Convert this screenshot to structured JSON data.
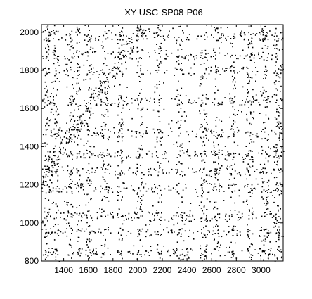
{
  "chart_data": {
    "type": "scatter",
    "title": "XY-USC-SP08-P06",
    "xlabel": "",
    "ylabel": "",
    "xlim": [
      1220,
      3180
    ],
    "ylim": [
      800,
      2040
    ],
    "x_ticks": [
      1400,
      1600,
      1800,
      2000,
      2200,
      2400,
      2600,
      2800,
      3000
    ],
    "y_ticks": [
      800,
      1000,
      1200,
      1400,
      1600,
      1800,
      2000
    ],
    "grid": false,
    "legend": "none",
    "marker_color": "#000000",
    "background_color": "#ffffff",
    "dense_bands_x": [
      [
        1240,
        1300
      ],
      [
        1310,
        1360
      ],
      [
        1420,
        1470
      ],
      [
        1500,
        1530
      ],
      [
        1570,
        1620
      ],
      [
        1700,
        1760
      ],
      [
        1830,
        1880
      ],
      [
        1990,
        2040
      ],
      [
        2150,
        2190
      ],
      [
        2310,
        2360
      ],
      [
        2500,
        2560
      ],
      [
        2610,
        2660
      ],
      [
        2740,
        2790
      ],
      [
        2880,
        2930
      ],
      [
        3000,
        3060
      ],
      [
        3100,
        3170
      ]
    ],
    "dense_bands_y": [
      [
        830,
        870
      ],
      [
        930,
        970
      ],
      [
        1010,
        1060
      ],
      [
        1160,
        1210
      ],
      [
        1250,
        1290
      ],
      [
        1340,
        1380
      ],
      [
        1450,
        1500
      ],
      [
        1620,
        1660
      ],
      [
        1780,
        1820
      ],
      [
        1860,
        1900
      ],
      [
        1960,
        2010
      ]
    ]
  }
}
